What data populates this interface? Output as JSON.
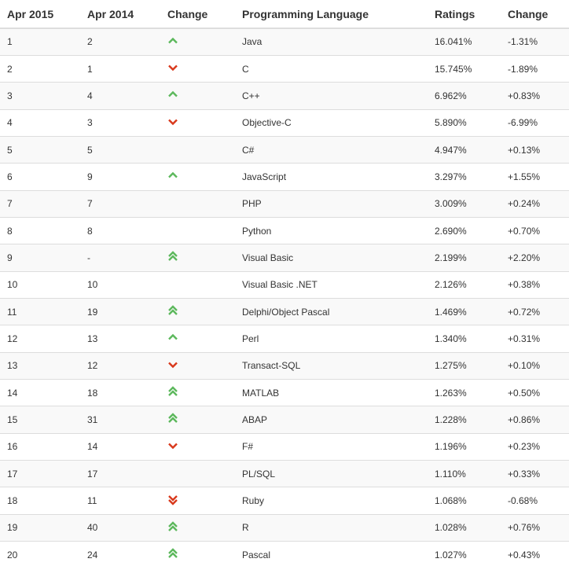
{
  "colors": {
    "up": "#5cb85c",
    "down": "#d9391c",
    "border": "#dddddd",
    "stripe": "#f9f9f9"
  },
  "header": {
    "col1": "Apr 2015",
    "col2": "Apr 2014",
    "col3": "Change",
    "col4": "Programming Language",
    "col5": "Ratings",
    "col6": "Change"
  },
  "rows": [
    {
      "rank2015": "1",
      "rank2014": "2",
      "change": "up",
      "language": "Java",
      "rating": "16.041%",
      "delta": "-1.31%"
    },
    {
      "rank2015": "2",
      "rank2014": "1",
      "change": "down",
      "language": "C",
      "rating": "15.745%",
      "delta": "-1.89%"
    },
    {
      "rank2015": "3",
      "rank2014": "4",
      "change": "up",
      "language": "C++",
      "rating": "6.962%",
      "delta": "+0.83%"
    },
    {
      "rank2015": "4",
      "rank2014": "3",
      "change": "down",
      "language": "Objective-C",
      "rating": "5.890%",
      "delta": "-6.99%"
    },
    {
      "rank2015": "5",
      "rank2014": "5",
      "change": "none",
      "language": "C#",
      "rating": "4.947%",
      "delta": "+0.13%"
    },
    {
      "rank2015": "6",
      "rank2014": "9",
      "change": "up",
      "language": "JavaScript",
      "rating": "3.297%",
      "delta": "+1.55%"
    },
    {
      "rank2015": "7",
      "rank2014": "7",
      "change": "none",
      "language": "PHP",
      "rating": "3.009%",
      "delta": "+0.24%"
    },
    {
      "rank2015": "8",
      "rank2014": "8",
      "change": "none",
      "language": "Python",
      "rating": "2.690%",
      "delta": "+0.70%"
    },
    {
      "rank2015": "9",
      "rank2014": "-",
      "change": "double-up",
      "language": "Visual Basic",
      "rating": "2.199%",
      "delta": "+2.20%"
    },
    {
      "rank2015": "10",
      "rank2014": "10",
      "change": "none",
      "language": "Visual Basic .NET",
      "rating": "2.126%",
      "delta": "+0.38%"
    },
    {
      "rank2015": "11",
      "rank2014": "19",
      "change": "double-up",
      "language": "Delphi/Object Pascal",
      "rating": "1.469%",
      "delta": "+0.72%"
    },
    {
      "rank2015": "12",
      "rank2014": "13",
      "change": "up",
      "language": "Perl",
      "rating": "1.340%",
      "delta": "+0.31%"
    },
    {
      "rank2015": "13",
      "rank2014": "12",
      "change": "down",
      "language": "Transact-SQL",
      "rating": "1.275%",
      "delta": "+0.10%"
    },
    {
      "rank2015": "14",
      "rank2014": "18",
      "change": "double-up",
      "language": "MATLAB",
      "rating": "1.263%",
      "delta": "+0.50%"
    },
    {
      "rank2015": "15",
      "rank2014": "31",
      "change": "double-up",
      "language": "ABAP",
      "rating": "1.228%",
      "delta": "+0.86%"
    },
    {
      "rank2015": "16",
      "rank2014": "14",
      "change": "down",
      "language": "F#",
      "rating": "1.196%",
      "delta": "+0.23%"
    },
    {
      "rank2015": "17",
      "rank2014": "17",
      "change": "none",
      "language": "PL/SQL",
      "rating": "1.110%",
      "delta": "+0.33%"
    },
    {
      "rank2015": "18",
      "rank2014": "11",
      "change": "double-down",
      "language": "Ruby",
      "rating": "1.068%",
      "delta": "-0.68%"
    },
    {
      "rank2015": "19",
      "rank2014": "40",
      "change": "double-up",
      "language": "R",
      "rating": "1.028%",
      "delta": "+0.76%"
    },
    {
      "rank2015": "20",
      "rank2014": "24",
      "change": "double-up",
      "language": "Pascal",
      "rating": "1.027%",
      "delta": "+0.43%"
    }
  ]
}
